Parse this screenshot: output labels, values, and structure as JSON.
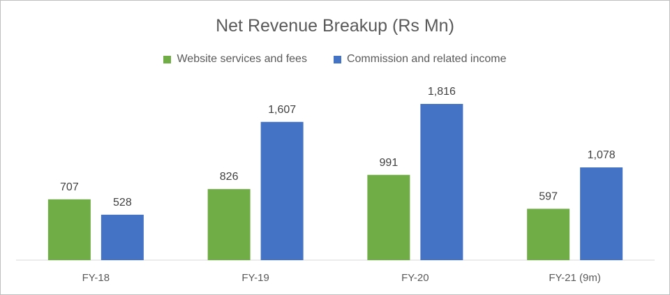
{
  "chart_data": {
    "type": "bar",
    "title": "Net Revenue Breakup (Rs Mn)",
    "categories": [
      "FY-18",
      "FY-19",
      "FY-20",
      "FY-21 (9m)"
    ],
    "series": [
      {
        "name": "Website services and fees",
        "color": "#70ad47",
        "values": [
          707,
          826,
          991,
          597
        ],
        "labels": [
          "707",
          "826",
          "991",
          "597"
        ]
      },
      {
        "name": "Commission and related income",
        "color": "#4472c4",
        "values": [
          528,
          1607,
          1816,
          1078
        ],
        "labels": [
          "528",
          "1,607",
          "1,816",
          "1,078"
        ]
      }
    ],
    "ylim": [
      0,
      2000
    ],
    "grid": false,
    "legend_position": "top"
  }
}
